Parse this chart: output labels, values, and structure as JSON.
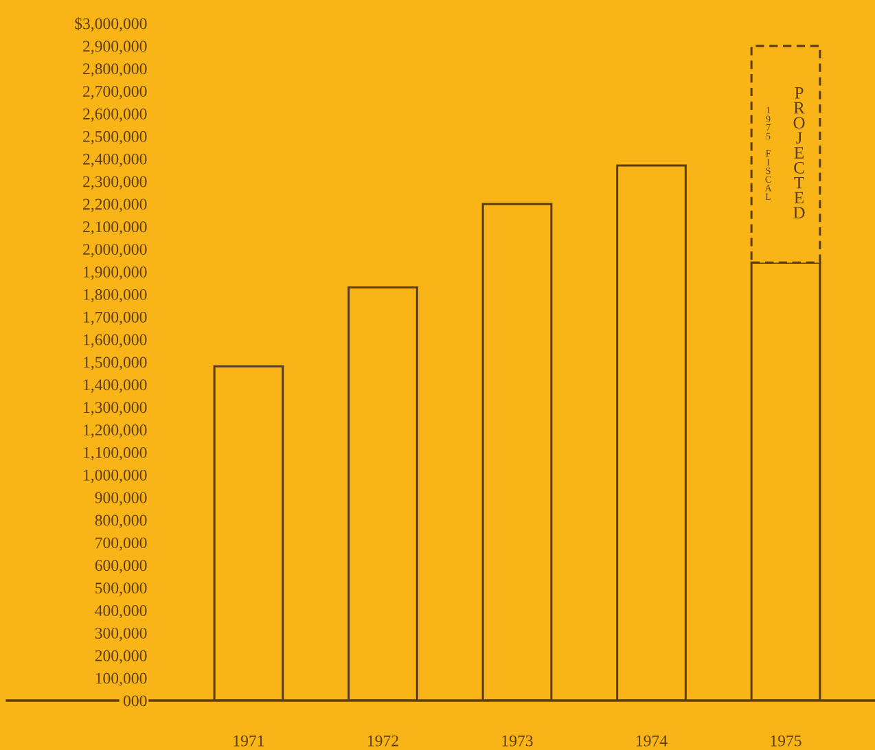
{
  "chart_data": {
    "type": "bar",
    "stacked": true,
    "categories": [
      "1971",
      "1972",
      "1973",
      "1974",
      "1975"
    ],
    "series": [
      {
        "color": "#f9b418",
        "values": [
          1480000,
          1830000,
          2200000,
          2370000,
          1940000
        ],
        "line_style": "solid"
      },
      {
        "color": "#f9b418",
        "values": [
          null,
          null,
          null,
          null,
          960000
        ],
        "line_style": "dashed"
      }
    ],
    "ylim": [
      0,
      3000000
    ],
    "yticks": [
      {
        "value": 0,
        "label": "000"
      },
      {
        "value": 100000,
        "label": "100,000"
      },
      {
        "value": 200000,
        "label": "200,000"
      },
      {
        "value": 300000,
        "label": "300,000"
      },
      {
        "value": 400000,
        "label": "400,000"
      },
      {
        "value": 500000,
        "label": "500,000"
      },
      {
        "value": 600000,
        "label": "600,000"
      },
      {
        "value": 700000,
        "label": "700,000"
      },
      {
        "value": 800000,
        "label": "800,000"
      },
      {
        "value": 900000,
        "label": "900,000"
      },
      {
        "value": 1000000,
        "label": "1,000,000"
      },
      {
        "value": 1100000,
        "label": "1,100,000"
      },
      {
        "value": 1200000,
        "label": "1,200,000"
      },
      {
        "value": 1300000,
        "label": "1,300,000"
      },
      {
        "value": 1400000,
        "label": "1,400,000"
      },
      {
        "value": 1500000,
        "label": "1,500,000"
      },
      {
        "value": 1600000,
        "label": "1,600,000"
      },
      {
        "value": 1700000,
        "label": "1,700,000"
      },
      {
        "value": 1800000,
        "label": "1,800,000"
      },
      {
        "value": 1900000,
        "label": "1,900,000"
      },
      {
        "value": 2000000,
        "label": "2,000,000"
      },
      {
        "value": 2100000,
        "label": "2,100,000"
      },
      {
        "value": 2200000,
        "label": "2,200,000"
      },
      {
        "value": 2300000,
        "label": "2,300,000"
      },
      {
        "value": 2400000,
        "label": "2,400,000"
      },
      {
        "value": 2500000,
        "label": "2,500,000"
      },
      {
        "value": 2600000,
        "label": "2,600,000"
      },
      {
        "value": 2700000,
        "label": "2,700,000"
      },
      {
        "value": 2800000,
        "label": "2,800,000"
      },
      {
        "value": 2900000,
        "label": "2,900,000"
      },
      {
        "value": 3000000,
        "label": "$3,000,000"
      }
    ],
    "grid": false,
    "legend": false,
    "annotations": [
      "1975 FISCAL",
      "PROJECTED"
    ]
  }
}
